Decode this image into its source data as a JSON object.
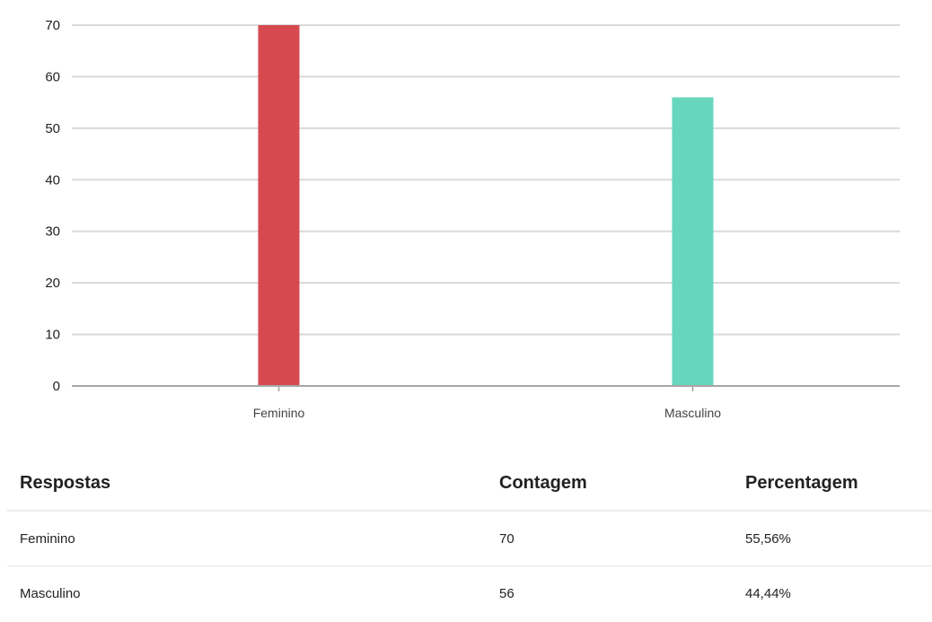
{
  "chart_data": {
    "type": "bar",
    "categories": [
      "Feminino",
      "Masculino"
    ],
    "values": [
      70,
      56
    ],
    "colors": [
      "#d64a4f",
      "#68d6bd"
    ],
    "ylim": [
      0,
      70
    ],
    "yticks": [
      0,
      10,
      20,
      30,
      40,
      50,
      60,
      70
    ],
    "grid": true,
    "title": "",
    "xlabel": "",
    "ylabel": ""
  },
  "table": {
    "headers": {
      "responses": "Respostas",
      "count": "Contagem",
      "percentage": "Percentagem"
    },
    "rows": [
      {
        "response": "Feminino",
        "count": "70",
        "percentage": "55,56%"
      },
      {
        "response": "Masculino",
        "count": "56",
        "percentage": "44,44%"
      }
    ]
  }
}
